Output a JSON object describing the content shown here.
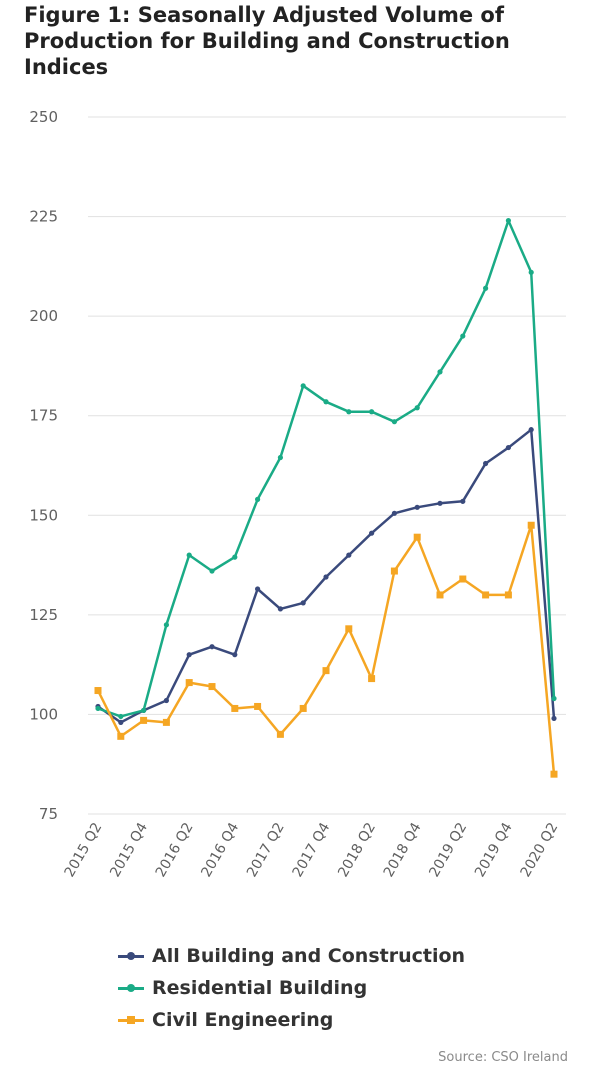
{
  "title": "Figure 1: Seasonally Adjusted Volume of Production for Building and Construction Indices",
  "source": "Source: CSO Ireland",
  "chart_data": {
    "type": "line",
    "title": "Figure 1: Seasonally Adjusted Volume of Production for Building and Construction Indices",
    "x_tick_labels": [
      "2015 Q2",
      "2015 Q4",
      "2016 Q2",
      "2016 Q4",
      "2017 Q2",
      "2017 Q4",
      "2018 Q2",
      "2018 Q4",
      "2019 Q2",
      "2019 Q4",
      "2020 Q2"
    ],
    "categories": [
      "2015 Q2",
      "2015 Q3",
      "2015 Q4",
      "2016 Q1",
      "2016 Q2",
      "2016 Q3",
      "2016 Q4",
      "2017 Q1",
      "2017 Q2",
      "2017 Q3",
      "2017 Q4",
      "2018 Q1",
      "2018 Q2",
      "2018 Q3",
      "2018 Q4",
      "2019 Q1",
      "2019 Q2",
      "2019 Q3",
      "2019 Q4",
      "2020 Q1",
      "2020 Q2"
    ],
    "ylim": [
      75,
      250
    ],
    "y_ticks": [
      75,
      100,
      125,
      150,
      175,
      200,
      225,
      250
    ],
    "grid": true,
    "legend_position": "bottom",
    "series": [
      {
        "name": "All Building and Construction",
        "color": "#3a4a7c",
        "marker": "circle",
        "values": [
          102,
          98,
          101,
          103.5,
          115,
          117,
          115,
          131.5,
          126.5,
          128,
          134.5,
          140,
          145.5,
          150.5,
          152,
          153,
          153.5,
          163,
          167,
          171.5,
          99
        ]
      },
      {
        "name": "Residential Building",
        "color": "#1aab86",
        "marker": "circle",
        "values": [
          101.5,
          99.5,
          101,
          122.5,
          140,
          136,
          139.5,
          154,
          164.5,
          182.5,
          178.5,
          176,
          176,
          173.5,
          177,
          186,
          195,
          207,
          224,
          211,
          104
        ]
      },
      {
        "name": "Civil Engineering",
        "color": "#f5a623",
        "marker": "square",
        "values": [
          106,
          94.5,
          98.5,
          98,
          108,
          107,
          101.5,
          102,
          95,
          101.5,
          111,
          121.5,
          109,
          136,
          144.5,
          130,
          134,
          130,
          130,
          147.5,
          85
        ]
      }
    ]
  }
}
